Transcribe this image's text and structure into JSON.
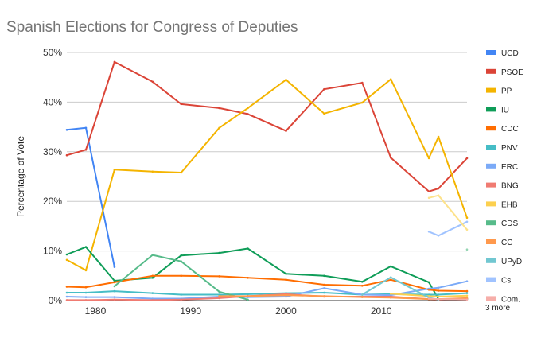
{
  "chart_data": {
    "type": "line",
    "title": "Spanish Elections for Congress of Deputies",
    "xlabel": "",
    "ylabel": "Percentage of Vote",
    "xlim": [
      1977,
      2019
    ],
    "ylim": [
      0,
      50
    ],
    "x_ticks": [
      1980,
      1990,
      2000,
      2010
    ],
    "y_ticks": [
      0,
      10,
      20,
      30,
      40,
      50
    ],
    "y_tick_labels": [
      "0%",
      "10%",
      "20%",
      "30%",
      "40%",
      "50%"
    ],
    "grid": true,
    "legend_position": "right",
    "legend_more": "3 more",
    "series": [
      {
        "name": "UCD",
        "color": "#4285f4",
        "points": [
          [
            1977,
            34.4
          ],
          [
            1979,
            34.8
          ],
          [
            1982,
            6.8
          ]
        ]
      },
      {
        "name": "PSOE",
        "color": "#db4437",
        "points": [
          [
            1977,
            29.3
          ],
          [
            1979,
            30.4
          ],
          [
            1982,
            48.1
          ],
          [
            1986,
            44.1
          ],
          [
            1989,
            39.6
          ],
          [
            1993,
            38.8
          ],
          [
            1996,
            37.6
          ],
          [
            2000,
            34.2
          ],
          [
            2004,
            42.6
          ],
          [
            2008,
            43.9
          ],
          [
            2011,
            28.8
          ],
          [
            2015,
            22.0
          ],
          [
            2016,
            22.6
          ],
          [
            2019,
            28.7
          ]
        ]
      },
      {
        "name": "PP",
        "color": "#f4b400",
        "points": [
          [
            1977,
            8.2
          ],
          [
            1979,
            6.1
          ],
          [
            1982,
            26.4
          ],
          [
            1986,
            26.0
          ],
          [
            1989,
            25.8
          ],
          [
            1993,
            34.8
          ],
          [
            1996,
            38.8
          ],
          [
            2000,
            44.5
          ],
          [
            2004,
            37.7
          ],
          [
            2008,
            39.9
          ],
          [
            2011,
            44.6
          ],
          [
            2015,
            28.7
          ],
          [
            2016,
            33.0
          ],
          [
            2019,
            16.7
          ]
        ]
      },
      {
        "name": "IU",
        "color": "#0f9d58",
        "points": [
          [
            1977,
            9.3
          ],
          [
            1979,
            10.8
          ],
          [
            1982,
            4.0
          ],
          [
            1986,
            4.6
          ],
          [
            1989,
            9.1
          ],
          [
            1993,
            9.6
          ],
          [
            1996,
            10.5
          ],
          [
            2000,
            5.4
          ],
          [
            2004,
            5.0
          ],
          [
            2008,
            3.8
          ],
          [
            2011,
            6.9
          ],
          [
            2015,
            3.7
          ],
          [
            2016,
            0.3
          ],
          [
            2019,
            0.3
          ]
        ]
      },
      {
        "name": "CDC",
        "color": "#ff6d01",
        "points": [
          [
            1977,
            2.8
          ],
          [
            1979,
            2.7
          ],
          [
            1982,
            3.7
          ],
          [
            1986,
            5.0
          ],
          [
            1989,
            5.0
          ],
          [
            1993,
            4.9
          ],
          [
            1996,
            4.6
          ],
          [
            2000,
            4.2
          ],
          [
            2004,
            3.2
          ],
          [
            2008,
            3.0
          ],
          [
            2011,
            4.2
          ],
          [
            2015,
            2.2
          ],
          [
            2016,
            2.0
          ],
          [
            2019,
            1.9
          ]
        ]
      },
      {
        "name": "PNV",
        "color": "#46bdc6",
        "points": [
          [
            1977,
            1.6
          ],
          [
            1979,
            1.6
          ],
          [
            1982,
            1.9
          ],
          [
            1986,
            1.5
          ],
          [
            1989,
            1.2
          ],
          [
            1993,
            1.2
          ],
          [
            1996,
            1.3
          ],
          [
            2000,
            1.5
          ],
          [
            2004,
            1.6
          ],
          [
            2008,
            1.2
          ],
          [
            2011,
            1.3
          ],
          [
            2015,
            1.2
          ],
          [
            2016,
            1.2
          ],
          [
            2019,
            1.5
          ]
        ]
      },
      {
        "name": "ERC",
        "color": "#7baaf7",
        "points": [
          [
            1977,
            0.8
          ],
          [
            1979,
            0.7
          ],
          [
            1982,
            0.7
          ],
          [
            1986,
            0.4
          ],
          [
            1989,
            0.4
          ],
          [
            1993,
            0.8
          ],
          [
            1996,
            0.7
          ],
          [
            2000,
            0.8
          ],
          [
            2004,
            2.5
          ],
          [
            2008,
            1.2
          ],
          [
            2011,
            1.1
          ],
          [
            2015,
            2.4
          ],
          [
            2016,
            2.6
          ],
          [
            2019,
            3.9
          ]
        ]
      },
      {
        "name": "BNG",
        "color": "#f07b72",
        "points": [
          [
            1977,
            0.1
          ],
          [
            1979,
            0.1
          ],
          [
            1982,
            0.2
          ],
          [
            1986,
            0.1
          ],
          [
            1989,
            0.2
          ],
          [
            1993,
            0.5
          ],
          [
            1996,
            0.9
          ],
          [
            2000,
            1.3
          ],
          [
            2004,
            0.8
          ],
          [
            2008,
            0.8
          ],
          [
            2011,
            0.8
          ],
          [
            2015,
            0.3
          ],
          [
            2016,
            0.2
          ],
          [
            2019,
            0.4
          ]
        ]
      },
      {
        "name": "EHB",
        "color": "#fcd04f",
        "points": [
          [
            2011,
            1.4
          ],
          [
            2015,
            0.9
          ],
          [
            2016,
            0.8
          ],
          [
            2019,
            1.0
          ]
        ]
      },
      {
        "name": "CDS",
        "color": "#57bb8a",
        "points": [
          [
            1982,
            2.9
          ],
          [
            1986,
            9.2
          ],
          [
            1989,
            7.9
          ],
          [
            1993,
            1.8
          ],
          [
            1996,
            0.2
          ]
        ]
      },
      {
        "name": "CC",
        "color": "#ff994d",
        "points": [
          [
            1993,
            0.9
          ],
          [
            1996,
            0.9
          ],
          [
            2000,
            1.1
          ],
          [
            2004,
            0.9
          ],
          [
            2008,
            0.7
          ],
          [
            2011,
            0.6
          ],
          [
            2015,
            0.3
          ],
          [
            2016,
            0.3
          ],
          [
            2019,
            0.5
          ]
        ]
      },
      {
        "name": "UPyD",
        "color": "#71c7d1",
        "points": [
          [
            2008,
            1.2
          ],
          [
            2011,
            4.7
          ],
          [
            2015,
            0.6
          ],
          [
            2016,
            0.2
          ]
        ]
      },
      {
        "name": "Cs",
        "color": "#a0c3ff",
        "points": [
          [
            2015,
            13.9
          ],
          [
            2016,
            13.1
          ],
          [
            2019,
            15.9
          ]
        ]
      },
      {
        "name": "Com.",
        "color": "#f6aea9",
        "points": [
          [
            2015,
            0.4
          ],
          [
            2016,
            0.3
          ],
          [
            2019,
            0.2
          ]
        ]
      },
      {
        "name": "",
        "color": "#fde28a",
        "points": [
          [
            2015,
            20.7
          ],
          [
            2016,
            21.2
          ],
          [
            2019,
            14.3
          ]
        ]
      },
      {
        "name": "",
        "color": "#93d5b1",
        "points": [
          [
            2019,
            10.3
          ]
        ]
      }
    ]
  }
}
